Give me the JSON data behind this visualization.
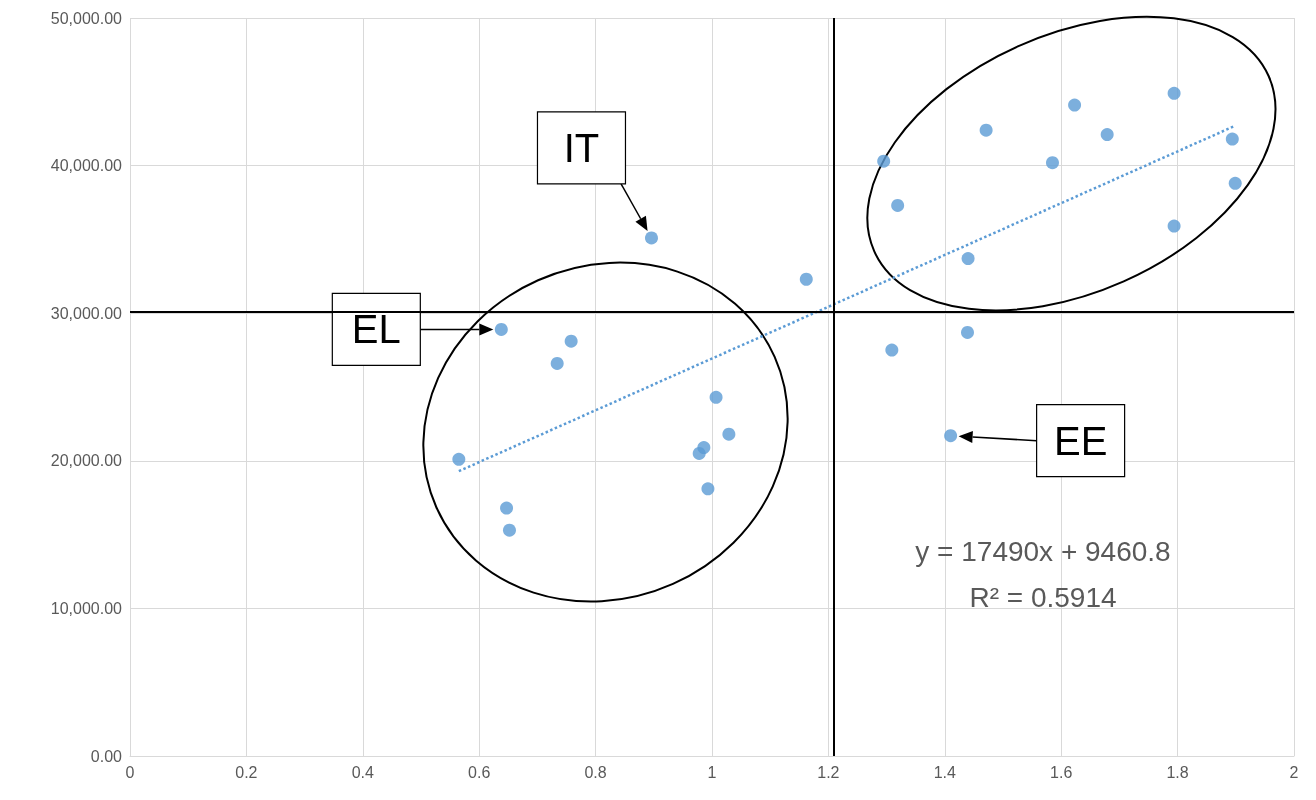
{
  "chart_data": {
    "type": "scatter",
    "x": [
      0.565,
      0.647,
      0.652,
      0.638,
      0.734,
      0.758,
      0.896,
      1.007,
      0.978,
      0.986,
      1.029,
      0.993,
      1.162,
      1.295,
      1.319,
      1.309,
      1.439,
      1.44,
      1.41,
      1.471,
      1.585,
      1.623,
      1.679,
      1.794,
      1.794,
      1.894,
      1.899
    ],
    "series": [
      {
        "color": "#5b9bd5",
        "values": [
          20100,
          16800,
          15300,
          28900,
          26600,
          28100,
          35100,
          24300,
          20500,
          20900,
          21800,
          18100,
          32300,
          40300,
          37300,
          27500,
          28700,
          33700,
          21700,
          42400,
          40200,
          44100,
          42100,
          44900,
          35900,
          41800,
          38800
        ]
      },
      {
        "type": "line",
        "color": "#5b9bd5",
        "line_style": "dotted",
        "marker": "none",
        "x": [
          0.565,
          1.899
        ],
        "values": [
          19300,
          42700
        ]
      }
    ],
    "xlim": [
      0,
      2
    ],
    "xticks": [
      0,
      0.2,
      0.4,
      0.6,
      0.8,
      1,
      1.2,
      1.4,
      1.6,
      1.8,
      2
    ],
    "ylim": [
      0,
      50000
    ],
    "yticks": [
      {
        "value": 0,
        "label": "0.00"
      },
      {
        "value": 10000,
        "label": "10,000.00"
      },
      {
        "value": 20000,
        "label": "20,000.00"
      },
      {
        "value": 30000,
        "label": "30,000.00"
      },
      {
        "value": 40000,
        "label": "40,000.00"
      },
      {
        "value": 50000,
        "label": "50,000.00"
      }
    ],
    "grid": true,
    "marker": "circle",
    "ref_lines": [
      {
        "axis": "x",
        "value": 1.21,
        "color": "#000000"
      },
      {
        "axis": "y",
        "value": 30100,
        "color": "#000000"
      }
    ],
    "annotations": [
      {
        "text": "IT",
        "x": 0.896,
        "y": 35100
      },
      {
        "text": "EL",
        "x": 0.638,
        "y": 28900
      },
      {
        "text": "EE",
        "x": 1.41,
        "y": 21700
      },
      "y = 17490x + 9460.8",
      "R² = 0.5914"
    ]
  }
}
